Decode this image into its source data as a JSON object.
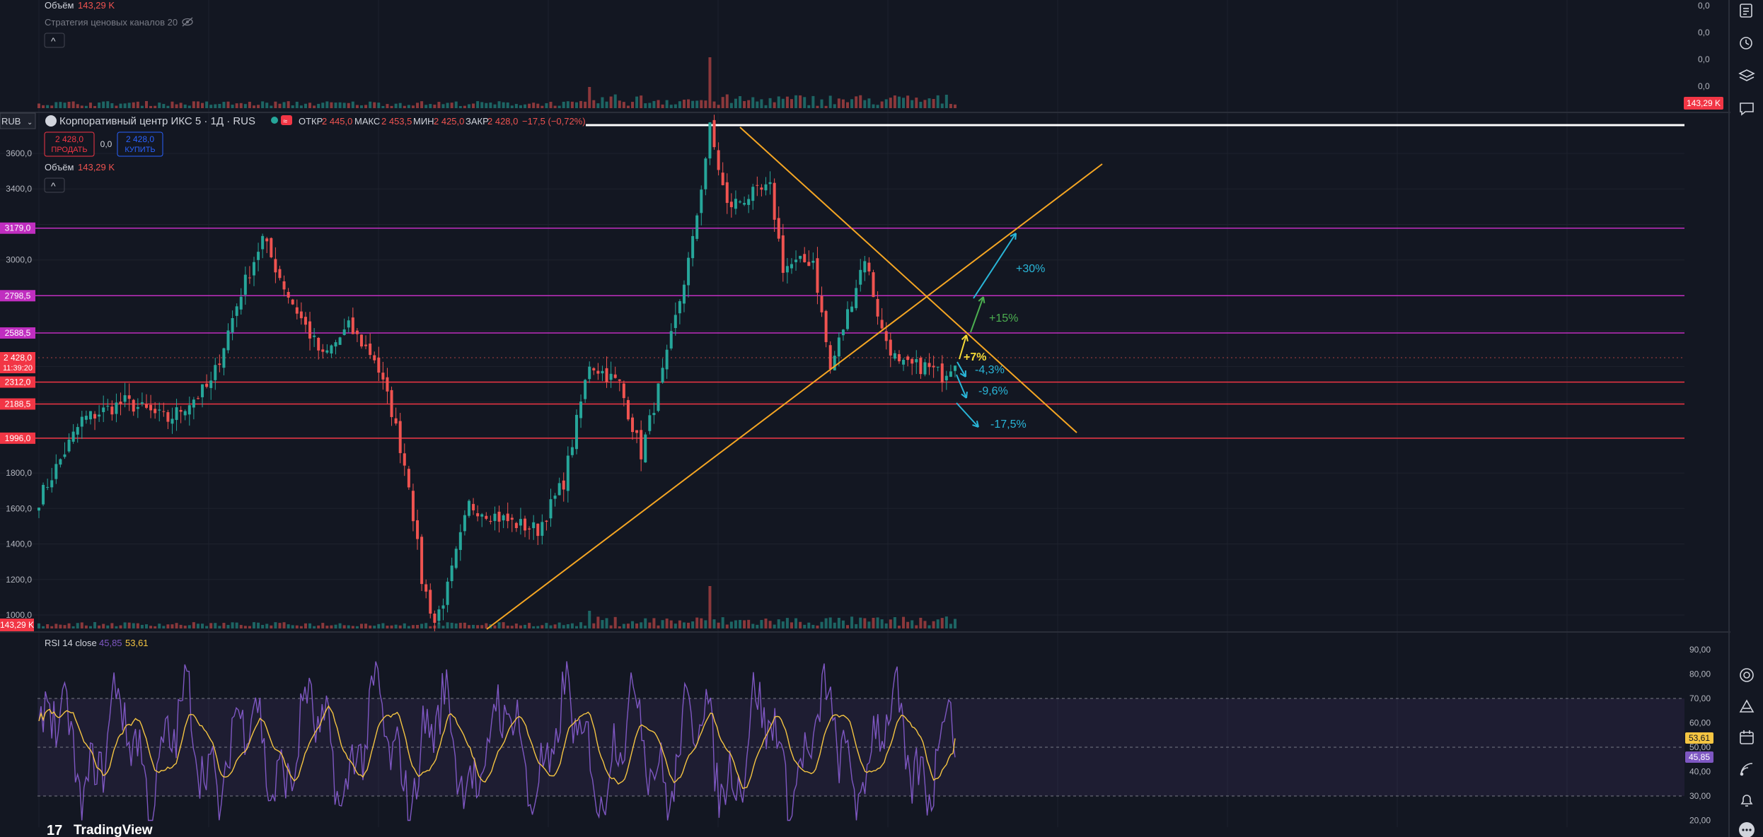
{
  "colors": {
    "bg": "#131722",
    "grid": "#1e222d",
    "up": "#26a69a",
    "down": "#ef5350",
    "purple_line": "#c02ec0",
    "red_line": "#f23645",
    "trend": "#f5a623",
    "cyan": "#29b6d8",
    "green": "#4caf50",
    "yellow": "#f5d936",
    "rsi": "#7e57c2",
    "rsi_ma": "#f5c542",
    "axis_text": "#b2b5be"
  },
  "top_panel": {
    "volume_label": "Объём",
    "volume_value": "143,29 K",
    "strategy_label": "Стратегия ценовых каналов 20",
    "collapse": "^",
    "axis_labels": [
      "0,0",
      "0,0",
      "0,0",
      "0,0"
    ],
    "badge": "143,29 K"
  },
  "main_panel": {
    "currency": "RUB",
    "symbol": "Корпоративный центр ИКС 5 · 1Д · RUS",
    "ohlc": {
      "open_label": "ОТКР",
      "open": "2 445,0",
      "high_label": "МАКС",
      "high": "2 453,5",
      "low_label": "МИН",
      "low": "2 425,0",
      "close_label": "ЗАКР",
      "close": "2 428,0",
      "change": "−17,5 (−0,72%)"
    },
    "sell_price": "2 428,0",
    "sell_label": "ПРОДАТЬ",
    "spread": "0,0",
    "buy_price": "2 428,0",
    "buy_label": "КУПИТЬ",
    "volume_label": "Объём",
    "volume_value": "143,29 K",
    "collapse": "^",
    "price_badge": "2 428,0",
    "countdown": "11:39:20",
    "volume_badge": "143,29 K"
  },
  "rsi_panel": {
    "label": "RSI 14 close",
    "rsi_value": "45,85",
    "ma_value": "53,61",
    "axis_labels": [
      "90,00",
      "80,00",
      "70,00",
      "60,00",
      "50,00",
      "40,00",
      "30,00",
      "20,00"
    ],
    "badge_ma": "53,61",
    "badge_rsi": "45,85"
  },
  "watermark": "TradingView",
  "toolbar_icons": [
    "watchlist-icon",
    "alarm-clock-icon",
    "layers-icon",
    "chat-icon",
    "target-icon",
    "ideas-icon",
    "calendar-icon",
    "stream-icon",
    "bell-icon",
    "more-icon"
  ],
  "chart_data": {
    "type": "candlestick",
    "timeframe": "1Д",
    "price_axis": {
      "ticks": [
        1000,
        1200,
        1400,
        1600,
        1800,
        2000,
        2200,
        2400,
        2600,
        2800,
        3000,
        3200,
        3400,
        3600
      ],
      "tick_labels": [
        "1000,0",
        "1200,0",
        "1400,0",
        "1600,0",
        "1800,0",
        "",
        "",
        "",
        "",
        "",
        "3000,0",
        "",
        "3400,0",
        "3600,0"
      ],
      "ylim": [
        870,
        3720
      ]
    },
    "series_waypoints": [
      [
        0,
        1650
      ],
      [
        10,
        2100
      ],
      [
        20,
        2200
      ],
      [
        30,
        2100
      ],
      [
        40,
        2300
      ],
      [
        47,
        2820
      ],
      [
        52,
        3120
      ],
      [
        58,
        2800
      ],
      [
        66,
        2450
      ],
      [
        72,
        2620
      ],
      [
        78,
        2450
      ],
      [
        82,
        2150
      ],
      [
        86,
        1750
      ],
      [
        89,
        1200
      ],
      [
        92,
        960
      ],
      [
        95,
        1150
      ],
      [
        100,
        1620
      ],
      [
        110,
        1520
      ],
      [
        116,
        1480
      ],
      [
        122,
        1750
      ],
      [
        128,
        2420
      ],
      [
        135,
        2300
      ],
      [
        140,
        1910
      ],
      [
        146,
        2450
      ],
      [
        152,
        3100
      ],
      [
        156,
        3740
      ],
      [
        160,
        3300
      ],
      [
        165,
        3360
      ],
      [
        170,
        3400
      ],
      [
        173,
        2960
      ],
      [
        180,
        3000
      ],
      [
        184,
        2380
      ],
      [
        188,
        2700
      ],
      [
        192,
        3020
      ],
      [
        196,
        2600
      ],
      [
        200,
        2400
      ],
      [
        206,
        2400
      ],
      [
        210,
        2350
      ],
      [
        213,
        2440
      ]
    ],
    "levels": [
      {
        "value": 3179.0,
        "label": "3179,0",
        "color": "purple"
      },
      {
        "value": 2798.5,
        "label": "2798,5",
        "color": "purple"
      },
      {
        "value": 2588.5,
        "label": "2588,5",
        "color": "purple"
      },
      {
        "value": 2312.0,
        "label": "2312,0",
        "color": "red"
      },
      {
        "value": 2188.5,
        "label": "2188,5",
        "color": "red"
      },
      {
        "value": 1996.0,
        "label": "1996,0",
        "color": "red"
      }
    ],
    "trendlines": [
      {
        "from": [
          1.5,
          870
        ],
        "to": [
          2.35,
          3512
        ],
        "note": "ascending support"
      },
      {
        "from": [
          1.67,
          3760
        ],
        "to": [
          2.42,
          2000
        ],
        "note": "descending resistance"
      }
    ],
    "targets": [
      {
        "label": "+30%",
        "color": "cyan"
      },
      {
        "label": "+15%",
        "color": "green"
      },
      {
        "label": "+7%",
        "color": "yellow"
      },
      {
        "label": "-4,3%",
        "color": "cyan"
      },
      {
        "label": "-9,6%",
        "color": "cyan"
      },
      {
        "label": "-17,5%",
        "color": "cyan"
      }
    ],
    "rsi": {
      "period": 14,
      "ylim": [
        15,
        95
      ],
      "bands": [
        30,
        50,
        70
      ],
      "last_rsi": 45.85,
      "last_ma": 53.61
    }
  }
}
